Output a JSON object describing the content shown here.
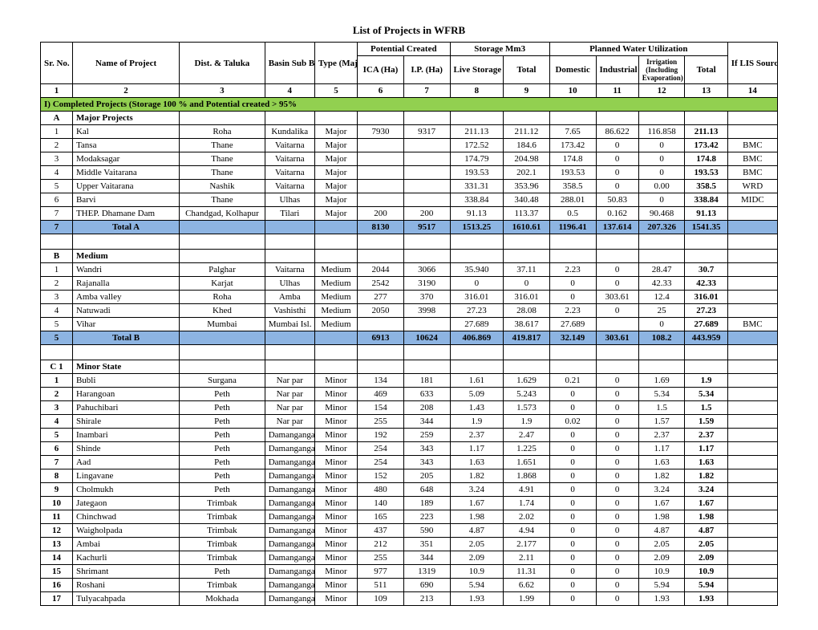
{
  "title": "List of Projects in WFRB",
  "columns": {
    "c1": "Sr. No.",
    "c2": "Name of Project",
    "c3": "Dist. & Taluka",
    "c4": "Basin Sub Basin",
    "c5": "Type (Major/ Medium/ Minor",
    "g_potential": "Potential Created",
    "c6": "ICA (Ha)",
    "c7": "I.P. (Ha)",
    "g_storage": "Storage Mm3",
    "c8": "Live Storage (MCM)",
    "c9": "Total",
    "g_plan": "Planned Water Utilization",
    "c10": "Domestic",
    "c11": "Industrial",
    "c12": "Irrigation (Including Evaporation)",
    "c13": "Total",
    "c14": "If LIS Source Reservoire"
  },
  "colnums": [
    "1",
    "2",
    "3",
    "4",
    "5",
    "6",
    "7",
    "8",
    "9",
    "10",
    "11",
    "12",
    "13",
    "14"
  ],
  "section1": "I) Completed Projects (Storage 100 % and Potential created > 95%",
  "subA": {
    "code": "A",
    "label": "Major Projects"
  },
  "rowsA": [
    {
      "sr": "1",
      "name": "Kal",
      "dist": "Roha",
      "basin": "Kundalika",
      "type": "Major",
      "ica": "7930",
      "ip": "9317",
      "ls": "211.13",
      "tot": "211.12",
      "dom": "7.65",
      "ind": "86.622",
      "irr": "116.858",
      "ptot": "211.13",
      "src": ""
    },
    {
      "sr": "2",
      "name": "Tansa",
      "dist": "Thane",
      "basin": "Vaitarna",
      "type": "Major",
      "ica": "",
      "ip": "",
      "ls": "172.52",
      "tot": "184.6",
      "dom": "173.42",
      "ind": "0",
      "irr": "0",
      "ptot": "173.42",
      "src": "BMC"
    },
    {
      "sr": "3",
      "name": "Modaksagar",
      "dist": "Thane",
      "basin": "Vaitarna",
      "type": "Major",
      "ica": "",
      "ip": "",
      "ls": "174.79",
      "tot": "204.98",
      "dom": "174.8",
      "ind": "0",
      "irr": "0",
      "ptot": "174.8",
      "src": "BMC"
    },
    {
      "sr": "4",
      "name": "Middle Vaitarana",
      "dist": "Thane",
      "basin": "Vaitarna",
      "type": "Major",
      "ica": "",
      "ip": "",
      "ls": "193.53",
      "tot": "202.1",
      "dom": "193.53",
      "ind": "0",
      "irr": "0",
      "ptot": "193.53",
      "src": "BMC"
    },
    {
      "sr": "5",
      "name": "Upper Vaitarana",
      "dist": "Nashik",
      "basin": "Vaitarna",
      "type": "Major",
      "ica": "",
      "ip": "",
      "ls": "331.31",
      "tot": "353.96",
      "dom": "358.5",
      "ind": "0",
      "irr": "0.00",
      "ptot": "358.5",
      "src": "WRD"
    },
    {
      "sr": "6",
      "name": "Barvi",
      "dist": "Thane",
      "basin": "Ulhas",
      "type": "Major",
      "ica": "",
      "ip": "",
      "ls": "338.84",
      "tot": "340.48",
      "dom": "288.01",
      "ind": "50.83",
      "irr": "0",
      "ptot": "338.84",
      "src": "MIDC"
    },
    {
      "sr": "7",
      "name": "THEP. Dhamane Dam",
      "dist": "Chandgad, Kolhapur",
      "basin": "Tilari",
      "type": "Major",
      "ica": "200",
      "ip": "200",
      "ls": "91.13",
      "tot": "113.37",
      "dom": "0.5",
      "ind": "0.162",
      "irr": "90.468",
      "ptot": "91.13",
      "src": ""
    }
  ],
  "totalA": {
    "sr": "7",
    "label": "Total A",
    "ica": "8130",
    "ip": "9517",
    "ls": "1513.25",
    "tot": "1610.61",
    "dom": "1196.41",
    "ind": "137.614",
    "irr": "207.326",
    "ptot": "1541.35"
  },
  "subB": {
    "code": "B",
    "label": "Medium"
  },
  "rowsB": [
    {
      "sr": "1",
      "name": "Wandri",
      "dist": "Palghar",
      "basin": "Vaitarna",
      "type": "Medium",
      "ica": "2044",
      "ip": "3066",
      "ls": "35.940",
      "tot": "37.11",
      "dom": "2.23",
      "ind": "0",
      "irr": "28.47",
      "ptot": "30.7",
      "src": ""
    },
    {
      "sr": "2",
      "name": "Rajanalla",
      "dist": "Karjat",
      "basin": "Ulhas",
      "type": "Medium",
      "ica": "2542",
      "ip": "3190",
      "ls": "0",
      "tot": "0",
      "dom": "0",
      "ind": "0",
      "irr": "42.33",
      "ptot": "42.33",
      "src": ""
    },
    {
      "sr": "3",
      "name": "Amba valley",
      "dist": "Roha",
      "basin": "Amba",
      "type": "Medium",
      "ica": "277",
      "ip": "370",
      "ls": "316.01",
      "tot": "316.01",
      "dom": "0",
      "ind": "303.61",
      "irr": "12.4",
      "ptot": "316.01",
      "src": ""
    },
    {
      "sr": "4",
      "name": "Natuwadi",
      "dist": "Khed",
      "basin": "Vashisthi",
      "type": "Medium",
      "ica": "2050",
      "ip": "3998",
      "ls": "27.23",
      "tot": "28.08",
      "dom": "2.23",
      "ind": "0",
      "irr": "25",
      "ptot": "27.23",
      "src": ""
    },
    {
      "sr": "5",
      "name": "Vihar",
      "dist": "Mumbai",
      "basin": "Mumbai Isl.",
      "type": "Medium",
      "ica": "",
      "ip": "",
      "ls": "27.689",
      "tot": "38.617",
      "dom": "27.689",
      "ind": "",
      "irr": "0",
      "ptot": "27.689",
      "src": "BMC"
    }
  ],
  "totalB": {
    "sr": "5",
    "label": "Total B",
    "ica": "6913",
    "ip": "10624",
    "ls": "406.869",
    "tot": "419.817",
    "dom": "32.149",
    "ind": "303.61",
    "irr": "108.2",
    "ptot": "443.959"
  },
  "subC": {
    "code": "C 1",
    "label": "Minor State"
  },
  "rowsC": [
    {
      "sr": "1",
      "name": "Bubli",
      "dist": "Surgana",
      "basin": "Nar par",
      "type": "Minor",
      "ica": "134",
      "ip": "181",
      "ls": "1.61",
      "tot": "1.629",
      "dom": "0.21",
      "ind": "0",
      "irr": "1.69",
      "ptot": "1.9",
      "src": ""
    },
    {
      "sr": "2",
      "name": "Harangoan",
      "dist": "Peth",
      "basin": "Nar par",
      "type": "Minor",
      "ica": "469",
      "ip": "633",
      "ls": "5.09",
      "tot": "5.243",
      "dom": "0",
      "ind": "0",
      "irr": "5.34",
      "ptot": "5.34",
      "src": ""
    },
    {
      "sr": "3",
      "name": "Pahuchibari",
      "dist": "Peth",
      "basin": "Nar par",
      "type": "Minor",
      "ica": "154",
      "ip": "208",
      "ls": "1.43",
      "tot": "1.573",
      "dom": "0",
      "ind": "0",
      "irr": "1.5",
      "ptot": "1.5",
      "src": ""
    },
    {
      "sr": "4",
      "name": "Shirale",
      "dist": "Peth",
      "basin": "Nar par",
      "type": "Minor",
      "ica": "255",
      "ip": "344",
      "ls": "1.9",
      "tot": "1.9",
      "dom": "0.02",
      "ind": "0",
      "irr": "1.57",
      "ptot": "1.59",
      "src": ""
    },
    {
      "sr": "5",
      "name": "Inambari",
      "dist": "Peth",
      "basin": "Damanganga",
      "type": "Minor",
      "ica": "192",
      "ip": "259",
      "ls": "2.37",
      "tot": "2.47",
      "dom": "0",
      "ind": "0",
      "irr": "2.37",
      "ptot": "2.37",
      "src": ""
    },
    {
      "sr": "6",
      "name": "Shinde",
      "dist": "Peth",
      "basin": "Damanganga",
      "type": "Minor",
      "ica": "254",
      "ip": "343",
      "ls": "1.17",
      "tot": "1.225",
      "dom": "0",
      "ind": "0",
      "irr": "1.17",
      "ptot": "1.17",
      "src": ""
    },
    {
      "sr": "7",
      "name": "Aad",
      "dist": "Peth",
      "basin": "Damanganga",
      "type": "Minor",
      "ica": "254",
      "ip": "343",
      "ls": "1.63",
      "tot": "1.651",
      "dom": "0",
      "ind": "0",
      "irr": "1.63",
      "ptot": "1.63",
      "src": ""
    },
    {
      "sr": "8",
      "name": "Lingavane",
      "dist": "Peth",
      "basin": "Damanganga",
      "type": "Minor",
      "ica": "152",
      "ip": "205",
      "ls": "1.82",
      "tot": "1.868",
      "dom": "0",
      "ind": "0",
      "irr": "1.82",
      "ptot": "1.82",
      "src": ""
    },
    {
      "sr": "9",
      "name": "Cholmukh",
      "dist": "Peth",
      "basin": "Damanganga",
      "type": "Minor",
      "ica": "480",
      "ip": "648",
      "ls": "3.24",
      "tot": "4.91",
      "dom": "0",
      "ind": "0",
      "irr": "3.24",
      "ptot": "3.24",
      "src": ""
    },
    {
      "sr": "10",
      "name": "Jategaon",
      "dist": "Trimbak",
      "basin": "Damanganga",
      "type": "Minor",
      "ica": "140",
      "ip": "189",
      "ls": "1.67",
      "tot": "1.74",
      "dom": "0",
      "ind": "0",
      "irr": "1.67",
      "ptot": "1.67",
      "src": ""
    },
    {
      "sr": "11",
      "name": "Chinchwad",
      "dist": "Trimbak",
      "basin": "Damanganga",
      "type": "Minor",
      "ica": "165",
      "ip": "223",
      "ls": "1.98",
      "tot": "2.02",
      "dom": "0",
      "ind": "0",
      "irr": "1.98",
      "ptot": "1.98",
      "src": ""
    },
    {
      "sr": "12",
      "name": "Waigholpada",
      "dist": "Trimbak",
      "basin": "Damanganga",
      "type": "Minor",
      "ica": "437",
      "ip": "590",
      "ls": "4.87",
      "tot": "4.94",
      "dom": "0",
      "ind": "0",
      "irr": "4.87",
      "ptot": "4.87",
      "src": ""
    },
    {
      "sr": "13",
      "name": "Ambai",
      "dist": "Trimbak",
      "basin": "Damanganga",
      "type": "Minor",
      "ica": "212",
      "ip": "351",
      "ls": "2.05",
      "tot": "2.177",
      "dom": "0",
      "ind": "0",
      "irr": "2.05",
      "ptot": "2.05",
      "src": ""
    },
    {
      "sr": "14",
      "name": "Kachurli",
      "dist": "Trimbak",
      "basin": "Damanganga",
      "type": "Minor",
      "ica": "255",
      "ip": "344",
      "ls": "2.09",
      "tot": "2.11",
      "dom": "0",
      "ind": "0",
      "irr": "2.09",
      "ptot": "2.09",
      "src": ""
    },
    {
      "sr": "15",
      "name": "Shrimant",
      "dist": "Peth",
      "basin": "Damanganga",
      "type": "Minor",
      "ica": "977",
      "ip": "1319",
      "ls": "10.9",
      "tot": "11.31",
      "dom": "0",
      "ind": "0",
      "irr": "10.9",
      "ptot": "10.9",
      "src": ""
    },
    {
      "sr": "16",
      "name": "Roshani",
      "dist": "Trimbak",
      "basin": "Damanganga",
      "type": "Minor",
      "ica": "511",
      "ip": "690",
      "ls": "5.94",
      "tot": "6.62",
      "dom": "0",
      "ind": "0",
      "irr": "5.94",
      "ptot": "5.94",
      "src": ""
    },
    {
      "sr": "17",
      "name": "Tulyacahpada",
      "dist": "Mokhada",
      "basin": "Damanganga",
      "type": "Minor",
      "ica": "109",
      "ip": "213",
      "ls": "1.93",
      "tot": "1.99",
      "dom": "0",
      "ind": "0",
      "irr": "1.93",
      "ptot": "1.93",
      "src": ""
    }
  ],
  "colors": {
    "green": "#92d050",
    "blue": "#8db4e2",
    "border": "#000000",
    "bg": "#ffffff"
  },
  "col_widths_pct": [
    4.5,
    15,
    12,
    7,
    6,
    6.5,
    6.5,
    7.5,
    6.5,
    6.5,
    6,
    6.5,
    6,
    7
  ]
}
